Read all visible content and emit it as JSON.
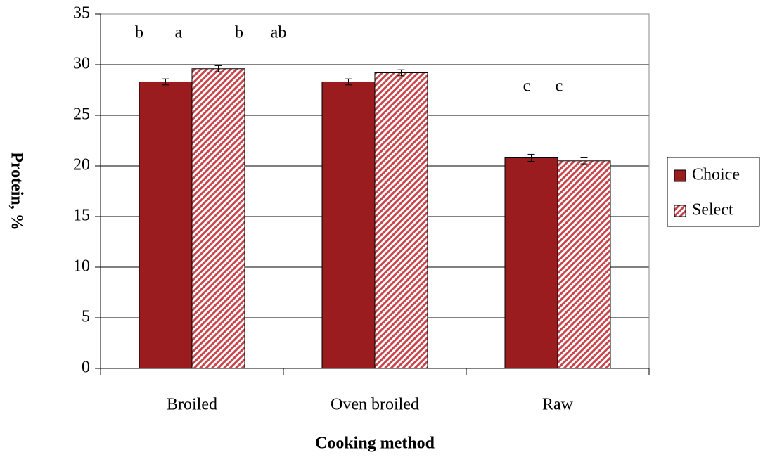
{
  "chart_data": {
    "type": "bar",
    "xlabel": "Cooking method",
    "ylabel": "Protein, %",
    "categories": [
      "Broiled",
      "Oven broiled",
      "Raw"
    ],
    "series": [
      {
        "name": "Choice",
        "color": "#9b1c1f",
        "values": [
          28.3,
          28.3,
          20.8
        ],
        "errors": [
          0.3,
          0.3,
          0.35
        ]
      },
      {
        "name": "Select",
        "color": "#c8464b",
        "pattern": "hatch",
        "values": [
          29.6,
          29.2,
          20.5
        ],
        "errors": [
          0.3,
          0.3,
          0.3
        ]
      }
    ],
    "ylim": [
      0,
      35
    ],
    "yticks": [
      0,
      5,
      10,
      15,
      20,
      25,
      30,
      35
    ],
    "grid": true,
    "legend": "right",
    "annotations": [
      "b",
      "a",
      "b",
      "ab",
      "c",
      "c"
    ]
  }
}
